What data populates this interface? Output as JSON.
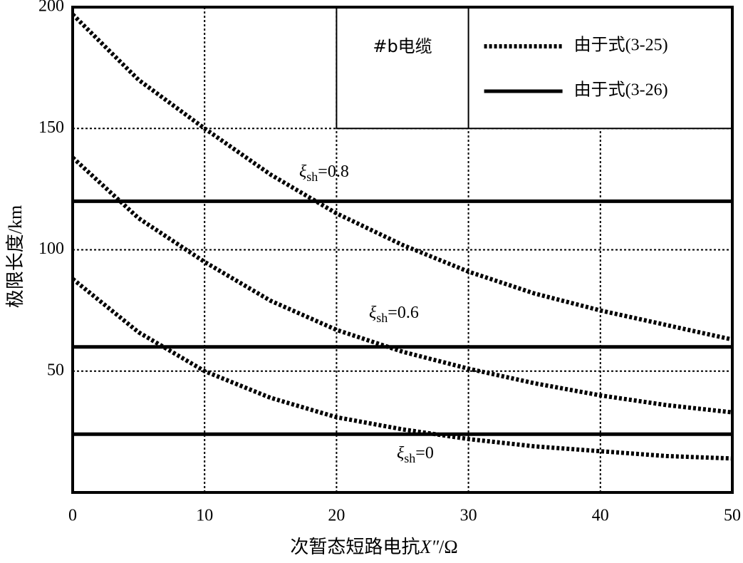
{
  "chart_data": {
    "type": "line",
    "xlabel": {
      "text": "次暂态短路电抗",
      "variable": "X″",
      "unit": "/Ω"
    },
    "ylabel": "极限长度/km",
    "annotation": "#b电缆",
    "xlim": [
      0,
      50
    ],
    "xticks": [
      0,
      10,
      20,
      30,
      40,
      50
    ],
    "ylim": [
      0,
      200
    ],
    "yticks": [
      50,
      100,
      150,
      200
    ],
    "grid": true,
    "legend": [
      {
        "label": "由于式(3-25)",
        "style": "dotted"
      },
      {
        "label": "由于式(3-26)",
        "style": "solid"
      }
    ],
    "series": [
      {
        "label": {
          "symbol": "ξ",
          "subscript": "sh",
          "text": "=0.8"
        },
        "style": "dotted",
        "color": "#000000",
        "x": [
          0,
          5,
          10,
          15,
          20,
          25,
          30,
          35,
          40,
          45,
          50
        ],
        "values": [
          197,
          170,
          150,
          131,
          115,
          102,
          91,
          82,
          75,
          69,
          63
        ]
      },
      {
        "label": {
          "symbol": "ξ",
          "subscript": "sh",
          "text": "=0.6"
        },
        "style": "dotted",
        "color": "#000000",
        "x": [
          0,
          5,
          10,
          15,
          20,
          25,
          30,
          35,
          40,
          45,
          50
        ],
        "values": [
          138,
          113,
          95,
          79,
          67,
          58,
          51,
          45,
          40,
          36,
          33
        ]
      },
      {
        "label": {
          "symbol": "ξ",
          "subscript": "sh",
          "text": "=0"
        },
        "style": "dotted",
        "color": "#000000",
        "x": [
          0,
          5,
          10,
          15,
          20,
          25,
          30,
          35,
          40,
          45,
          50
        ],
        "values": [
          88,
          66,
          50,
          39,
          31,
          26,
          22,
          19,
          17,
          15,
          14
        ]
      },
      {
        "style": "solid",
        "color": "#000000",
        "x": [
          0,
          50
        ],
        "values": [
          120,
          120
        ]
      },
      {
        "style": "solid",
        "color": "#000000",
        "x": [
          0,
          50
        ],
        "values": [
          60,
          60
        ]
      },
      {
        "style": "solid",
        "color": "#000000",
        "x": [
          0,
          50
        ],
        "values": [
          24,
          24
        ]
      }
    ]
  }
}
